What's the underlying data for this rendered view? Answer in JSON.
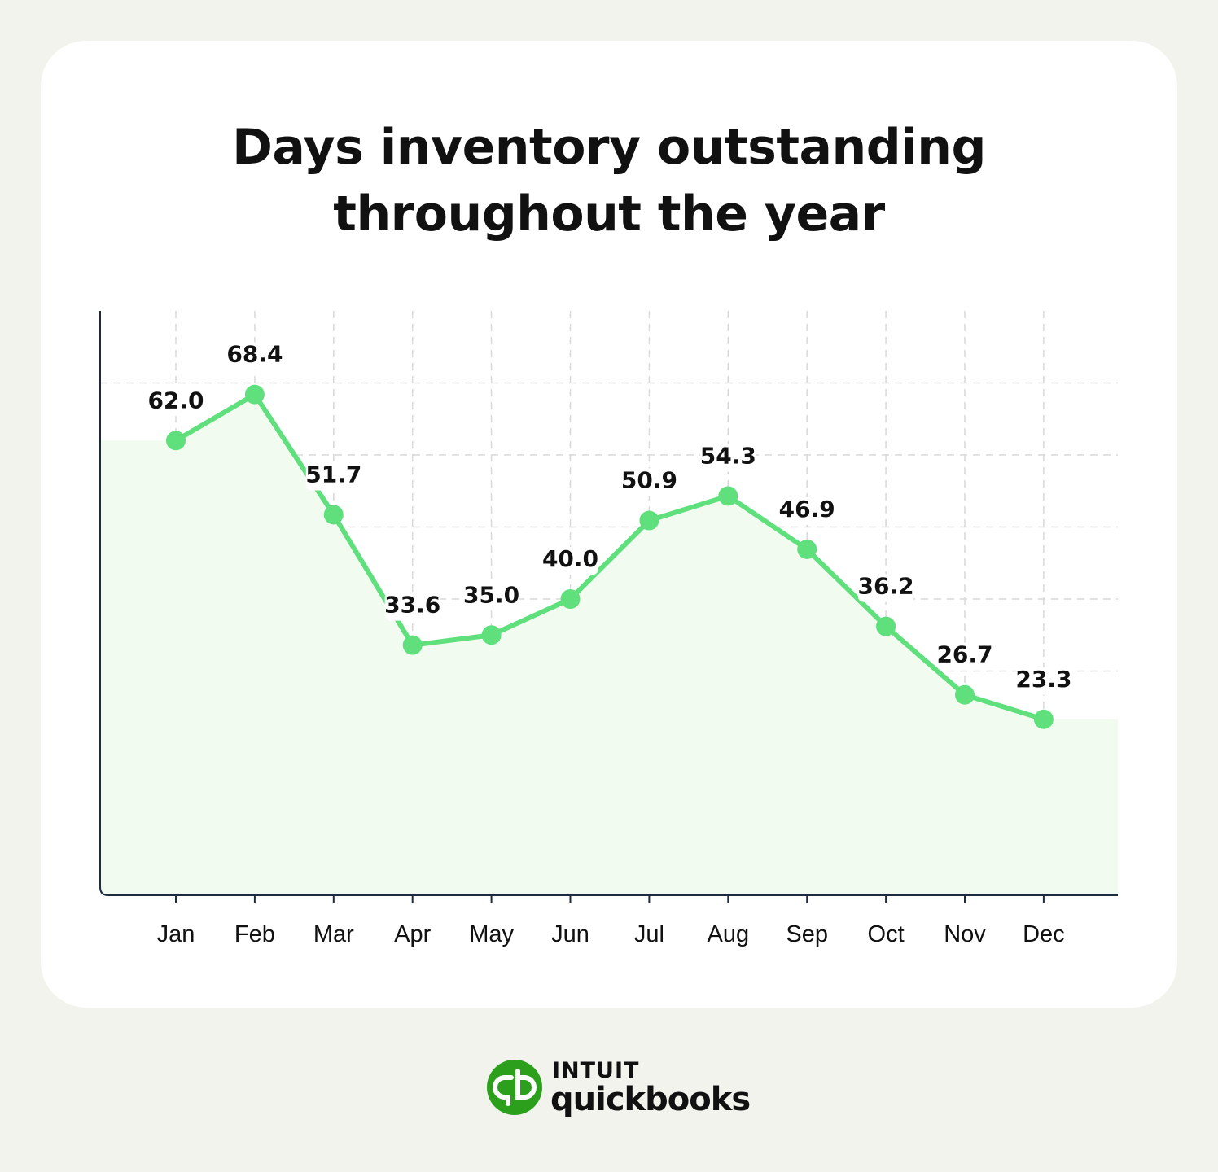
{
  "chart_data": {
    "type": "line",
    "title": "Days inventory outstanding throughout the year",
    "title_lines": [
      "Days inventory outstanding",
      "throughout the year"
    ],
    "categories": [
      "Jan",
      "Feb",
      "Mar",
      "Apr",
      "May",
      "Jun",
      "Jul",
      "Aug",
      "Sep",
      "Oct",
      "Nov",
      "Dec"
    ],
    "series": [
      {
        "values": [
          62.0,
          68.4,
          51.7,
          33.6,
          35.0,
          40.0,
          50.9,
          54.3,
          46.9,
          36.2,
          26.7,
          23.3
        ],
        "labels": [
          "62.0",
          "68.4",
          "51.7",
          "33.6",
          "35.0",
          "40.0",
          "50.9",
          "54.3",
          "46.9",
          "36.2",
          "26.7",
          "23.3"
        ]
      }
    ],
    "xlabel": "",
    "ylabel": "",
    "ylim": [
      0,
      80
    ],
    "grid": true,
    "show_y_ticks": false,
    "colors": {
      "line": "#5fe07d",
      "marker": "#5fe07d",
      "fill": "#f1fbf0",
      "grid": "#d9d9d9",
      "axis": "#1d2b3e",
      "label": "#111111"
    }
  },
  "logo": {
    "brand_top": "INTUIT",
    "brand_bottom": "quickbooks",
    "mark_color": "#2ca01c",
    "mark_glyph": "qb-logo-icon"
  }
}
